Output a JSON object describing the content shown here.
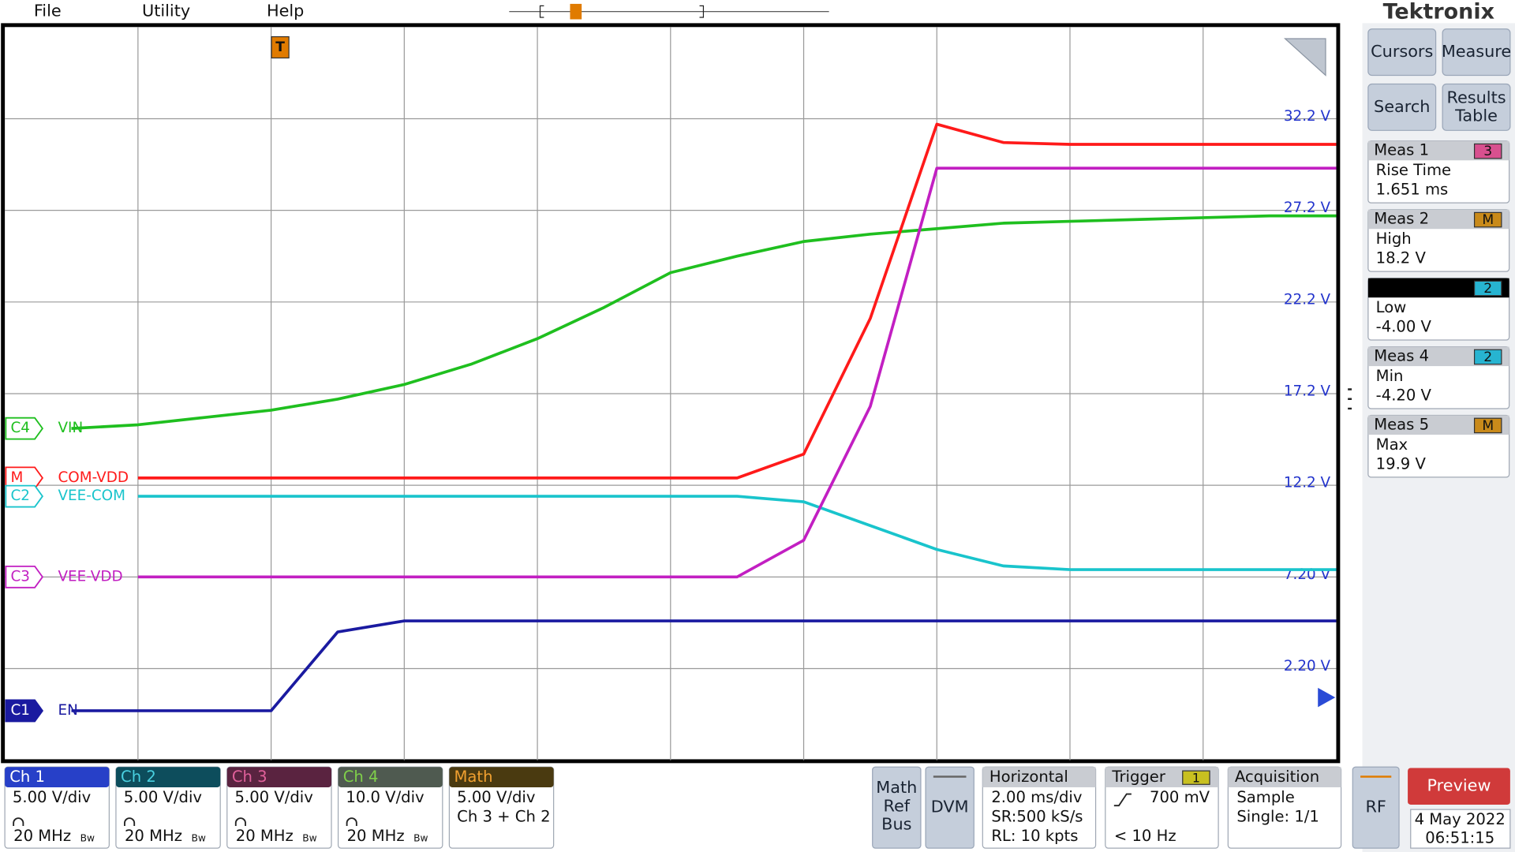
{
  "menu": {
    "file": "File",
    "utility": "Utility",
    "help": "Help"
  },
  "brand": "Tektronix",
  "trigger_marker": "T",
  "chart_data": {
    "type": "line",
    "categories": [
      null,
      null,
      null,
      null,
      null,
      null,
      null,
      null,
      null,
      null,
      null,
      null,
      null,
      null,
      null,
      null,
      null,
      null,
      null,
      null,
      null
    ],
    "ylim": [
      -2.8,
      37.2
    ],
    "yticks": [
      {
        "value": 32.2,
        "label": "32.2 V"
      },
      {
        "value": 27.2,
        "label": "27.2 V"
      },
      {
        "value": 22.2,
        "label": "22.2 V"
      },
      {
        "value": 17.2,
        "label": "17.2 V"
      },
      {
        "value": 12.2,
        "label": "12.2 V"
      },
      {
        "value": 7.2,
        "label": "7.20 V"
      },
      {
        "value": 2.2,
        "label": "2.20 V"
      }
    ],
    "grid": true,
    "series": [
      {
        "name": "VIN",
        "tag": "C4",
        "color": "#1fbf1f",
        "values": [
          null,
          15.3,
          15.5,
          15.9,
          16.3,
          16.9,
          17.7,
          18.8,
          20.2,
          21.9,
          23.8,
          24.7,
          25.5,
          25.9,
          26.2,
          26.5,
          26.6,
          26.7,
          26.8,
          26.9,
          26.9
        ]
      },
      {
        "name": "COM-VDD",
        "tag": "M",
        "color": "#ff1a1a",
        "values": [
          null,
          null,
          12.6,
          12.6,
          12.6,
          12.6,
          12.6,
          12.6,
          12.6,
          12.6,
          12.6,
          12.6,
          13.9,
          21.3,
          31.9,
          30.9,
          30.8,
          30.8,
          30.8,
          30.8,
          30.8
        ]
      },
      {
        "name": "VEE-COM",
        "tag": "C2",
        "color": "#19c4cc",
        "values": [
          null,
          null,
          11.6,
          11.6,
          11.6,
          11.6,
          11.6,
          11.6,
          11.6,
          11.6,
          11.6,
          11.6,
          11.3,
          10.0,
          8.7,
          7.8,
          7.6,
          7.6,
          7.6,
          7.6,
          7.6
        ]
      },
      {
        "name": "VEE-VDD",
        "tag": "C3",
        "color": "#c21fc2",
        "values": [
          null,
          null,
          7.2,
          7.2,
          7.2,
          7.2,
          7.2,
          7.2,
          7.2,
          7.2,
          7.2,
          7.2,
          9.2,
          16.5,
          29.5,
          29.5,
          29.5,
          29.5,
          29.5,
          29.5,
          29.5
        ]
      },
      {
        "name": "EN",
        "tag": "C1",
        "color": "#1a1aa0",
        "values": [
          null,
          -0.1,
          -0.1,
          -0.1,
          -0.1,
          4.2,
          4.8,
          4.8,
          4.8,
          4.8,
          4.8,
          4.8,
          4.8,
          4.8,
          4.8,
          4.8,
          4.8,
          4.8,
          4.8,
          4.8,
          4.8
        ]
      }
    ]
  },
  "side_buttons": [
    [
      "Cursors"
    ],
    [
      "Measure"
    ],
    [
      "Search"
    ],
    [
      "Results",
      "Table"
    ]
  ],
  "measurements": [
    {
      "title": "Meas 1",
      "badge": "3",
      "name": "Rise Time",
      "value": "1.651 ms"
    },
    {
      "title": "Meas 2",
      "badge": "M",
      "name": "High",
      "value": "18.2 V"
    },
    {
      "badge": "2",
      "name": "Low",
      "value": "-4.00 V"
    },
    {
      "title": "Meas 4",
      "badge": "2",
      "name": "Min",
      "value": "-4.20 V"
    },
    {
      "title": "Meas 5",
      "badge": "M",
      "name": "Max",
      "value": "19.9 V"
    }
  ],
  "channels": [
    {
      "name": "Ch 1",
      "scale": "5.00 V/div",
      "bandwidth": "20 MHz",
      "bw": "Bw"
    },
    {
      "name": "Ch 2",
      "scale": "5.00 V/div",
      "bandwidth": "20 MHz",
      "bw": "Bw"
    },
    {
      "name": "Ch 3",
      "scale": "5.00 V/div",
      "bandwidth": "20 MHz",
      "bw": "Bw"
    },
    {
      "name": "Ch 4",
      "scale": "10.0 V/div",
      "bandwidth": "20 MHz",
      "bw": "Bw"
    },
    {
      "name": "Math",
      "scale": "5.00 V/div",
      "source": "Ch 3 + Ch 2"
    }
  ],
  "buttons": {
    "math_ref_bus": [
      "Math",
      "Ref",
      "Bus"
    ],
    "dvm": "DVM",
    "rf": "RF",
    "preview": "Preview"
  },
  "horizontal": {
    "title": "Horizontal",
    "lines": [
      "2.00 ms/div",
      "SR:500 kS/s",
      "RL: 10 kpts"
    ]
  },
  "trigger": {
    "title": "Trigger",
    "source": "1",
    "level": "700 mV",
    "rate": "< 10 Hz"
  },
  "acquisition": {
    "title": "Acquisition",
    "lines": [
      "Sample",
      "Single: 1/1"
    ]
  },
  "datetime": {
    "date": "4 May 2022",
    "time": "06:51:15"
  }
}
